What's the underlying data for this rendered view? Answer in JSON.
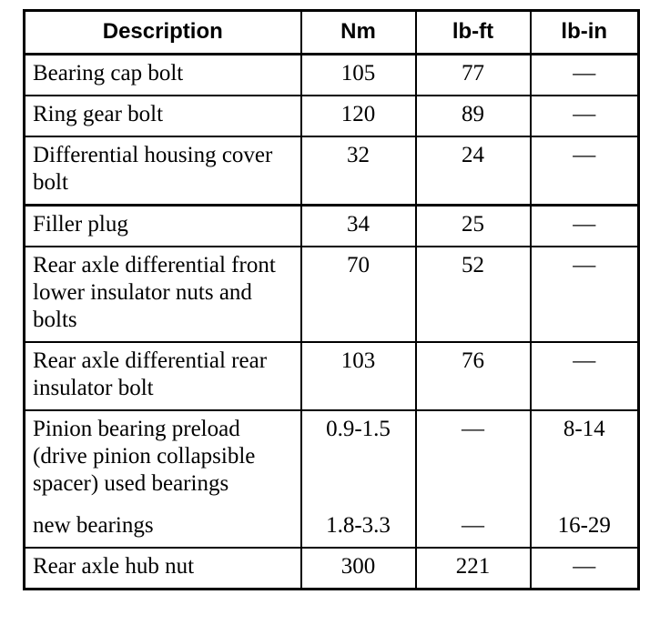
{
  "headers": [
    "Description",
    "Nm",
    "lb-ft",
    "lb-in"
  ],
  "rows": [
    {
      "description": "Bearing cap bolt",
      "nm": "105",
      "lbft": "77",
      "lbin": "—"
    },
    {
      "description": "Ring gear bolt",
      "nm": "120",
      "lbft": "89",
      "lbin": "—"
    },
    {
      "description": "Differential housing cover bolt",
      "nm": "32",
      "lbft": "24",
      "lbin": "—"
    },
    {
      "description": "Filler plug",
      "nm": "34",
      "lbft": "25",
      "lbin": "—"
    },
    {
      "description": "Rear axle differential front lower insulator nuts and bolts",
      "nm": "70",
      "lbft": "52",
      "lbin": "—"
    },
    {
      "description": "Rear axle differential rear insulator bolt",
      "nm": "103",
      "lbft": "76",
      "lbin": "—"
    },
    {
      "description": "Pinion bearing preload (drive pinion collapsible spacer) used bearings",
      "nm": "0.9-1.5",
      "lbft": "—",
      "lbin": "8-14"
    },
    {
      "description": "new bearings",
      "nm": "1.8-3.3",
      "lbft": "—",
      "lbin": "16-29"
    },
    {
      "description": "Rear axle hub nut",
      "nm": "300",
      "lbft": "221",
      "lbin": "—"
    }
  ]
}
